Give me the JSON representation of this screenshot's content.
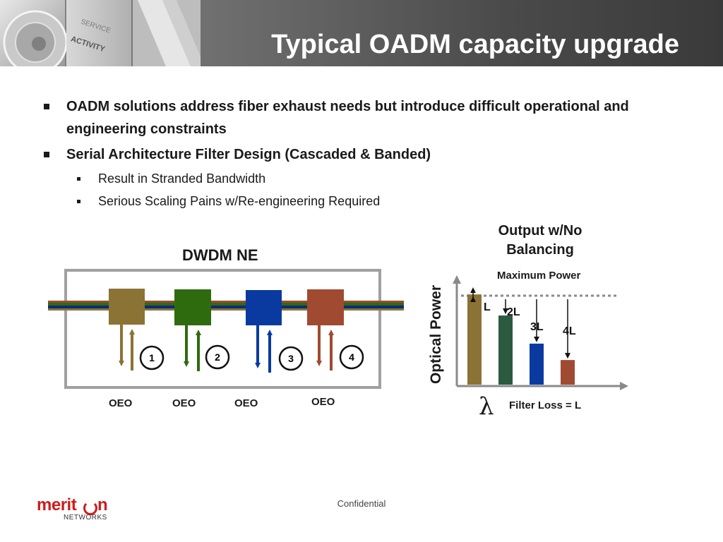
{
  "slide": {
    "title": "Typical OADM capacity upgrade",
    "header_photo_words": [
      "SERVICE",
      "ACTIVITY"
    ]
  },
  "bullets": [
    {
      "text": "OADM solutions address fiber exhaust needs but introduce difficult operational and engineering constraints",
      "level": 1
    },
    {
      "text": "Serial Architecture Filter Design (Cascaded & Banded)",
      "level": 1
    },
    {
      "text": "Result in Stranded Bandwidth",
      "level": 2
    },
    {
      "text": "Serious Scaling Pains w/Re-engineering Required",
      "level": 2
    }
  ],
  "dwdm": {
    "title": "DWDM NE",
    "filters": [
      {
        "number": "1",
        "label": "OEO",
        "color": "#8b7335"
      },
      {
        "number": "2",
        "label": "OEO",
        "color": "#2e6b0f"
      },
      {
        "number": "3",
        "label": "OEO",
        "color": "#0a3aa0"
      },
      {
        "number": "4",
        "label": "OEO",
        "color": "#a04a32"
      }
    ],
    "fiber_colors": [
      "#9a4a30",
      "#2e6b0f",
      "#0a2a80",
      "#8b7335"
    ]
  },
  "power_chart": {
    "title": "Output w/No Balancing",
    "max_power_label": "Maximum Power",
    "y_axis_label": "Optical Power",
    "x_axis_symbol": "λ",
    "filter_loss_label": "Filter Loss = L",
    "bars": [
      {
        "loss_label": "L",
        "color": "#8b7335",
        "level": 0.77
      },
      {
        "loss_label": "2L",
        "color": "#2b5a40",
        "level": 0.59
      },
      {
        "loss_label": "3L",
        "color": "#0a3aa0",
        "level": 0.35
      },
      {
        "loss_label": "4L",
        "color": "#a04a32",
        "level": 0.21
      }
    ]
  },
  "footer": {
    "confidential": "Confidential",
    "logo_text_left": "merit",
    "logo_text_right": "n",
    "logo_sub": "NETWORKS"
  }
}
